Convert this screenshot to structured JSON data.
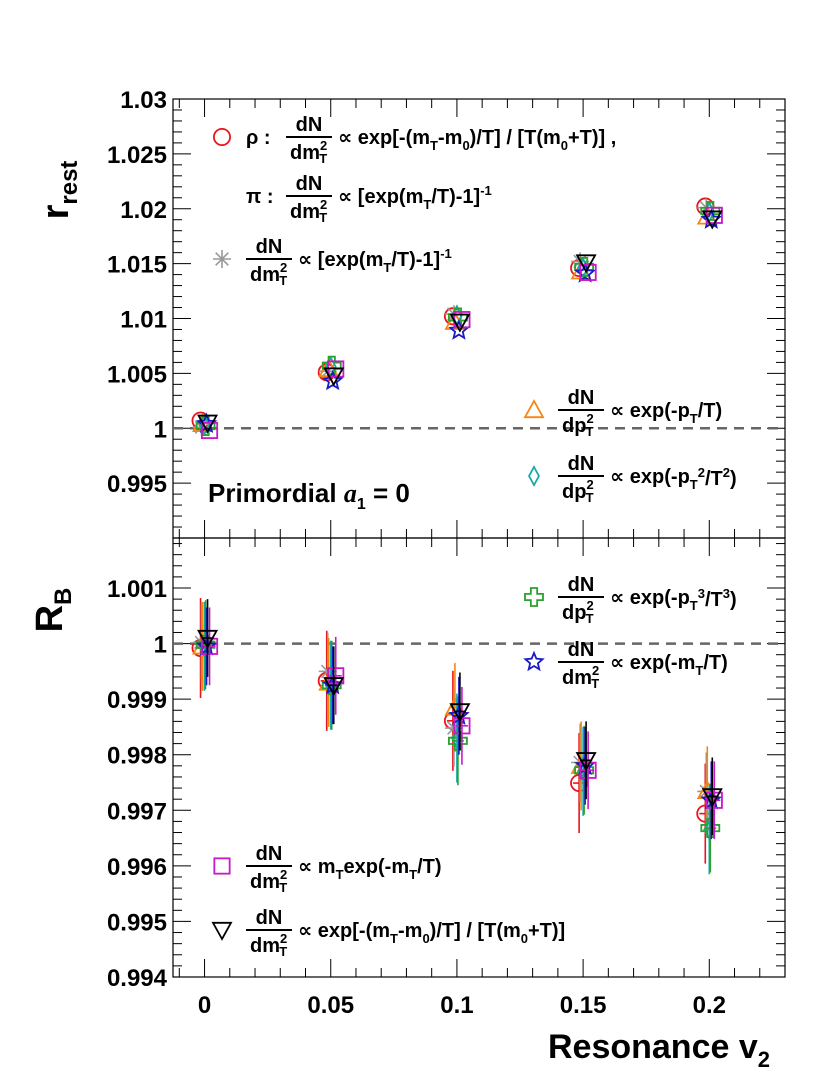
{
  "chart_data": [
    {
      "type": "scatter",
      "panel": "top",
      "ylabel": "r",
      "ylabel_sub": "rest",
      "ylim": [
        0.99,
        1.03
      ],
      "xlim": [
        -0.0125,
        0.23
      ],
      "y_ticks": [
        "0.995",
        "1",
        "1.005",
        "1.01",
        "1.015",
        "1.02",
        "1.025",
        "1.03"
      ],
      "reference_line": 1,
      "annotation": {
        "prefix": "Primordial ",
        "symbol": "a",
        "sub": "1",
        "suffix": " = 0"
      },
      "x": [
        0,
        0.05,
        0.1,
        0.15,
        0.2
      ],
      "series": [
        {
          "name": "ρ : dN/dm_T^2 ∝ exp[-(m_T-m_0)/T] / [T(m_0+T)]",
          "marker": "circle",
          "color": "#e8151b",
          "values": [
            1.0007,
            1.0051,
            1.0102,
            1.0146,
            1.0202
          ]
        },
        {
          "name": "dN/dm_T^2 ∝ [exp(m_T/T)-1]^-1",
          "marker": "asterisk",
          "color": "#999999",
          "values": [
            1.0001,
            1.0052,
            1.0104,
            1.0152,
            1.0201
          ]
        },
        {
          "name": "dN/dp_T^2 ∝ exp(-p_T/T)",
          "marker": "triangle",
          "color": "#f7860e",
          "values": [
            1.0004,
            1.0054,
            1.0097,
            1.0143,
            1.0193
          ]
        },
        {
          "name": "dN/dp_T^2 ∝ exp(-p_T^2/T^2)",
          "marker": "diamond",
          "color": "#17a9a9",
          "values": [
            1.0003,
            1.0056,
            1.0103,
            1.0146,
            1.0197
          ]
        },
        {
          "name": "dN/dp_T^2 ∝ exp(-p_T^3/T^3)",
          "marker": "cross",
          "color": "#2ca02c",
          "values": [
            1.0002,
            1.0057,
            1.0101,
            1.0147,
            1.0198
          ]
        },
        {
          "name": "dN/dm_T^2 ∝ exp(-m_T/T)",
          "marker": "star",
          "color": "#1a1ac9",
          "values": [
            1.0004,
            1.0043,
            1.0089,
            1.0141,
            1.019
          ]
        },
        {
          "name": "dN/dm_T^2 ∝ m_T exp(-m_T/T)",
          "marker": "square",
          "color": "#c61ac6",
          "values": [
            0.9998,
            1.0054,
            1.0099,
            1.0142,
            1.0194
          ]
        },
        {
          "name": "dN/dm_T^2 ∝ exp[-(m_T-m_0)/T] / [T(m_0+T)]",
          "marker": "triangle-down",
          "color": "#000000",
          "values": [
            1.0005,
            1.0048,
            1.0097,
            1.0151,
            1.0191
          ]
        }
      ]
    },
    {
      "type": "scatter",
      "panel": "bottom",
      "ylabel": "R",
      "ylabel_sub": "B",
      "xlabel": "Resonance v",
      "xlabel_sub": "2",
      "ylim": [
        0.994,
        1.0019
      ],
      "xlim": [
        -0.0125,
        0.23
      ],
      "x_ticks": [
        "0",
        "0.05",
        "0.1",
        "0.15",
        "0.2"
      ],
      "y_ticks": [
        "0.994",
        "0.995",
        "0.996",
        "0.997",
        "0.998",
        "0.999",
        "1",
        "1.001"
      ],
      "reference_line": 1,
      "x": [
        0,
        0.05,
        0.1,
        0.15,
        0.2
      ],
      "series": [
        {
          "name": "ρ : dN/dm_T^2 ∝ exp[-(m_T-m_0)/T] / [T(m_0+T)]",
          "marker": "circle",
          "color": "#e8151b",
          "values": [
            0.99992,
            0.99933,
            0.99861,
            0.99749,
            0.99694
          ],
          "errors": [
            0.0009,
            0.0009,
            0.0009,
            0.0009,
            0.0009
          ]
        },
        {
          "name": "dN/dm_T^2 ∝ [exp(m_T/T)-1]^-1",
          "marker": "asterisk",
          "color": "#999999",
          "values": [
            1.00002,
            0.9995,
            0.99848,
            0.99786,
            0.99734
          ],
          "errors": [
            0.0007,
            0.0007,
            0.0007,
            0.0007,
            0.0007
          ]
        },
        {
          "name": "dN/dp_T^2 ∝ exp(-p_T/T)",
          "marker": "triangle",
          "color": "#f7860e",
          "values": [
            0.99995,
            0.9993,
            0.99885,
            0.9978,
            0.99735
          ],
          "errors": [
            0.0008,
            0.0008,
            0.0008,
            0.0008,
            0.0008
          ]
        },
        {
          "name": "dN/dp_T^2 ∝ exp(-p_T^2/T^2)",
          "marker": "diamond",
          "color": "#17a9a9",
          "values": [
            0.99995,
            0.99925,
            0.9983,
            0.9977,
            0.99665
          ],
          "errors": [
            0.0008,
            0.0008,
            0.0008,
            0.0008,
            0.0008
          ]
        },
        {
          "name": "dN/dp_T^2 ∝ exp(-p_T^3/T^3)",
          "marker": "cross",
          "color": "#2ca02c",
          "values": [
            0.99998,
            0.99925,
            0.99825,
            0.99772,
            0.99668
          ],
          "errors": [
            0.0008,
            0.0008,
            0.0008,
            0.0008,
            0.0008
          ]
        },
        {
          "name": "dN/dm_T^2 ∝ exp(-m_T/T)",
          "marker": "star",
          "color": "#1a1ac9",
          "values": [
            0.99995,
            0.99925,
            0.9987,
            0.9978,
            0.99718
          ],
          "errors": [
            0.0007,
            0.0007,
            0.0007,
            0.0007,
            0.0007
          ]
        },
        {
          "name": "dN/dm_T^2 ∝ m_T exp(-m_T/T)",
          "marker": "square",
          "color": "#c61ac6",
          "values": [
            0.99995,
            0.99942,
            0.99852,
            0.99772,
            0.99718
          ],
          "errors": [
            0.0007,
            0.0007,
            0.0007,
            0.0007,
            0.0007
          ]
        },
        {
          "name": "dN/dm_T^2 ∝ exp[-(m_T-m_0)/T] / [T(m_0+T)]",
          "marker": "triangle-down",
          "color": "#000000",
          "values": [
            1.0001,
            0.99925,
            0.99878,
            0.9979,
            0.99725
          ],
          "errors": [
            0.0007,
            0.0007,
            0.0007,
            0.0007,
            0.0007
          ]
        }
      ]
    }
  ],
  "legend": [
    {
      "marker": "circle",
      "color": "#e8151b",
      "prefix": "ρ :",
      "num": "dN",
      "den": "dm",
      "den_sub": "T",
      "den_sup": "2",
      "formula": [
        [
          "t",
          "∝ exp[-(m"
        ],
        [
          "sub",
          "T"
        ],
        [
          "t",
          "-m"
        ],
        [
          "sub",
          "0"
        ],
        [
          "t",
          ")/T] / [T(m"
        ],
        [
          "sub",
          "0"
        ],
        [
          "t",
          "+T)] ,"
        ]
      ]
    },
    {
      "marker": "none",
      "color": "#000000",
      "prefix": "π :",
      "num": "dN",
      "den": "dm",
      "den_sub": "T",
      "den_sup": "2",
      "formula": [
        [
          "t",
          "∝ [exp(m"
        ],
        [
          "sub",
          "T"
        ],
        [
          "t",
          "/T)-1]"
        ],
        [
          "sup",
          "-1"
        ]
      ]
    },
    {
      "marker": "asterisk",
      "color": "#999999",
      "prefix": "",
      "num": "dN",
      "den": "dm",
      "den_sub": "T",
      "den_sup": "2",
      "formula": [
        [
          "t",
          "∝ [exp(m"
        ],
        [
          "sub",
          "T"
        ],
        [
          "t",
          "/T)-1]"
        ],
        [
          "sup",
          "-1"
        ]
      ]
    },
    {
      "marker": "triangle",
      "color": "#f7860e",
      "prefix": "",
      "num": "dN",
      "den": "dp",
      "den_sub": "T",
      "den_sup": "2",
      "formula": [
        [
          "t",
          "∝ exp(-p"
        ],
        [
          "sub",
          "T"
        ],
        [
          "t",
          "/T)"
        ]
      ]
    },
    {
      "marker": "diamond",
      "color": "#17a9a9",
      "prefix": "",
      "num": "dN",
      "den": "dp",
      "den_sub": "T",
      "den_sup": "2",
      "formula": [
        [
          "t",
          "∝ exp(-p"
        ],
        [
          "sub",
          "T"
        ],
        [
          "sup",
          "2"
        ],
        [
          "t",
          "/T"
        ],
        [
          "sup",
          "2"
        ],
        [
          "t",
          ")"
        ]
      ]
    },
    {
      "marker": "cross",
      "color": "#2ca02c",
      "prefix": "",
      "num": "dN",
      "den": "dp",
      "den_sub": "T",
      "den_sup": "2",
      "formula": [
        [
          "t",
          "∝ exp(-p"
        ],
        [
          "sub",
          "T"
        ],
        [
          "sup",
          "3"
        ],
        [
          "t",
          "/T"
        ],
        [
          "sup",
          "3"
        ],
        [
          "t",
          ")"
        ]
      ]
    },
    {
      "marker": "star",
      "color": "#1a1ac9",
      "prefix": "",
      "num": "dN",
      "den": "dm",
      "den_sub": "T",
      "den_sup": "2",
      "formula": [
        [
          "t",
          "∝ exp(-m"
        ],
        [
          "sub",
          "T"
        ],
        [
          "t",
          "/T)"
        ]
      ]
    },
    {
      "marker": "square",
      "color": "#c61ac6",
      "prefix": "",
      "num": "dN",
      "den": "dm",
      "den_sub": "T",
      "den_sup": "2",
      "formula": [
        [
          "t",
          "∝ m"
        ],
        [
          "sub",
          "T"
        ],
        [
          "t",
          "exp(-m"
        ],
        [
          "sub",
          "T"
        ],
        [
          "t",
          "/T)"
        ]
      ]
    },
    {
      "marker": "triangle-down",
      "color": "#000000",
      "prefix": "",
      "num": "dN",
      "den": "dm",
      "den_sub": "T",
      "den_sup": "2",
      "formula": [
        [
          "t",
          "∝ exp[-(m"
        ],
        [
          "sub",
          "T"
        ],
        [
          "t",
          "-m"
        ],
        [
          "sub",
          "0"
        ],
        [
          "t",
          ")/T] / [T(m"
        ],
        [
          "sub",
          "0"
        ],
        [
          "t",
          "+T)]"
        ]
      ]
    }
  ]
}
